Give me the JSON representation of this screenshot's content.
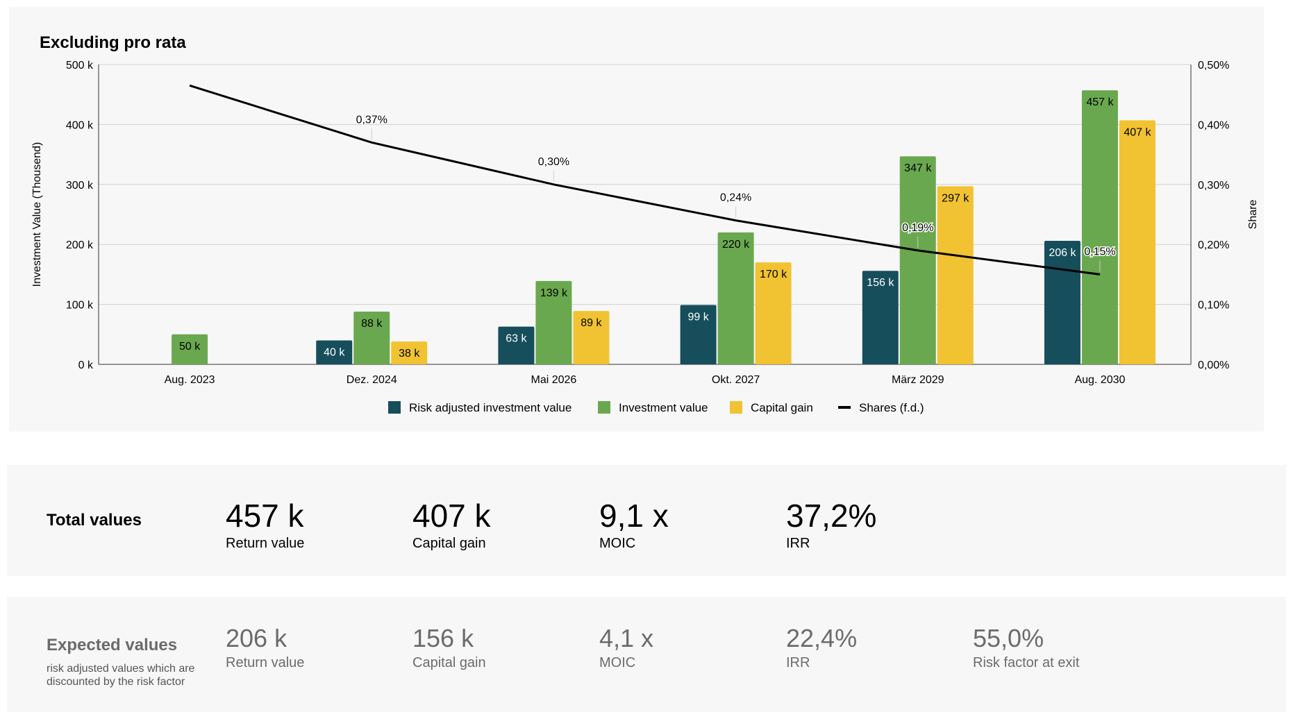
{
  "chart_data": {
    "type": "bar",
    "title": "Excluding pro rata",
    "categories": [
      "Aug. 2023",
      "Dez. 2024",
      "Mai 2026",
      "Okt. 2027",
      "März 2029",
      "Aug. 2030"
    ],
    "ylabel": "Investment Value (Thousend)",
    "y2label": "Share",
    "ylim": [
      0,
      500
    ],
    "y2lim": [
      0,
      0.5
    ],
    "yticks": [
      "0 k",
      "100 k",
      "200 k",
      "300 k",
      "400 k",
      "500 k"
    ],
    "y2ticks": [
      "0,00%",
      "0,10%",
      "0,20%",
      "0,30%",
      "0,40%",
      "0,50%"
    ],
    "grid": true,
    "legend_position": "bottom",
    "series": [
      {
        "name": "Risk adjusted investment value",
        "color": "#164e5c",
        "values": [
          null,
          40,
          63,
          99,
          156,
          206
        ],
        "labels": [
          "",
          "40 k",
          "63 k",
          "99 k",
          "156 k",
          "206 k"
        ]
      },
      {
        "name": "Investment value",
        "color": "#6aa84f",
        "values": [
          50,
          88,
          139,
          220,
          347,
          457
        ],
        "labels": [
          "50 k",
          "88 k",
          "139 k",
          "220 k",
          "347 k",
          "457 k"
        ]
      },
      {
        "name": "Capital gain",
        "color": "#f1c232",
        "values": [
          null,
          38,
          89,
          170,
          297,
          407
        ],
        "labels": [
          "",
          "38 k",
          "89 k",
          "170 k",
          "297 k",
          "407 k"
        ]
      },
      {
        "name": "Shares (f.d.)",
        "type": "line",
        "color": "#000000",
        "values": [
          0.465,
          0.37,
          0.3,
          0.24,
          0.19,
          0.15
        ],
        "labels": [
          "",
          "0,37%",
          "0,30%",
          "0,24%",
          "0,19%",
          "0,15%"
        ]
      }
    ]
  },
  "totals": {
    "title": "Total values",
    "items": [
      {
        "value": "457 k",
        "label": "Return value"
      },
      {
        "value": "407 k",
        "label": "Capital gain"
      },
      {
        "value": "9,1 x",
        "label": "MOIC"
      },
      {
        "value": "37,2%",
        "label": "IRR"
      }
    ]
  },
  "expected": {
    "title": "Expected values",
    "subtitle": "risk adjusted values which are discounted by the risk factor",
    "items": [
      {
        "value": "206 k",
        "label": "Return value"
      },
      {
        "value": "156 k",
        "label": "Capital gain"
      },
      {
        "value": "4,1 x",
        "label": "MOIC"
      },
      {
        "value": "22,4%",
        "label": "IRR"
      },
      {
        "value": "55,0%",
        "label": "Risk factor at exit"
      }
    ]
  }
}
